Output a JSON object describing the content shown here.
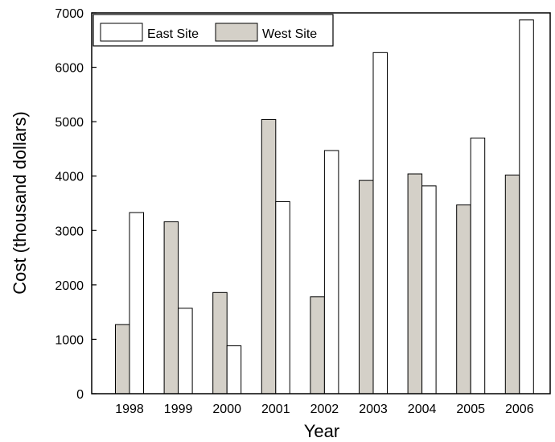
{
  "chart_data": {
    "type": "bar",
    "title": "",
    "xlabel": "Year",
    "ylabel": "Cost (thousand dollars)",
    "categories": [
      "1998",
      "1999",
      "2000",
      "2001",
      "2002",
      "2003",
      "2004",
      "2005",
      "2006"
    ],
    "series": [
      {
        "name": "West Site",
        "values": [
          1270,
          3160,
          1860,
          5040,
          1780,
          3920,
          4040,
          3470,
          4020
        ],
        "color": "#d4d0c8"
      },
      {
        "name": "East Site",
        "values": [
          3330,
          1570,
          880,
          3530,
          4470,
          6270,
          3820,
          4700,
          6870
        ],
        "color": "#ffffff"
      }
    ],
    "ylim": [
      0,
      7000
    ],
    "yticks": [
      0,
      1000,
      2000,
      3000,
      4000,
      5000,
      6000,
      7000
    ],
    "legend": {
      "position": "top-left",
      "order": [
        "East Site",
        "West Site"
      ]
    },
    "grid": false
  }
}
